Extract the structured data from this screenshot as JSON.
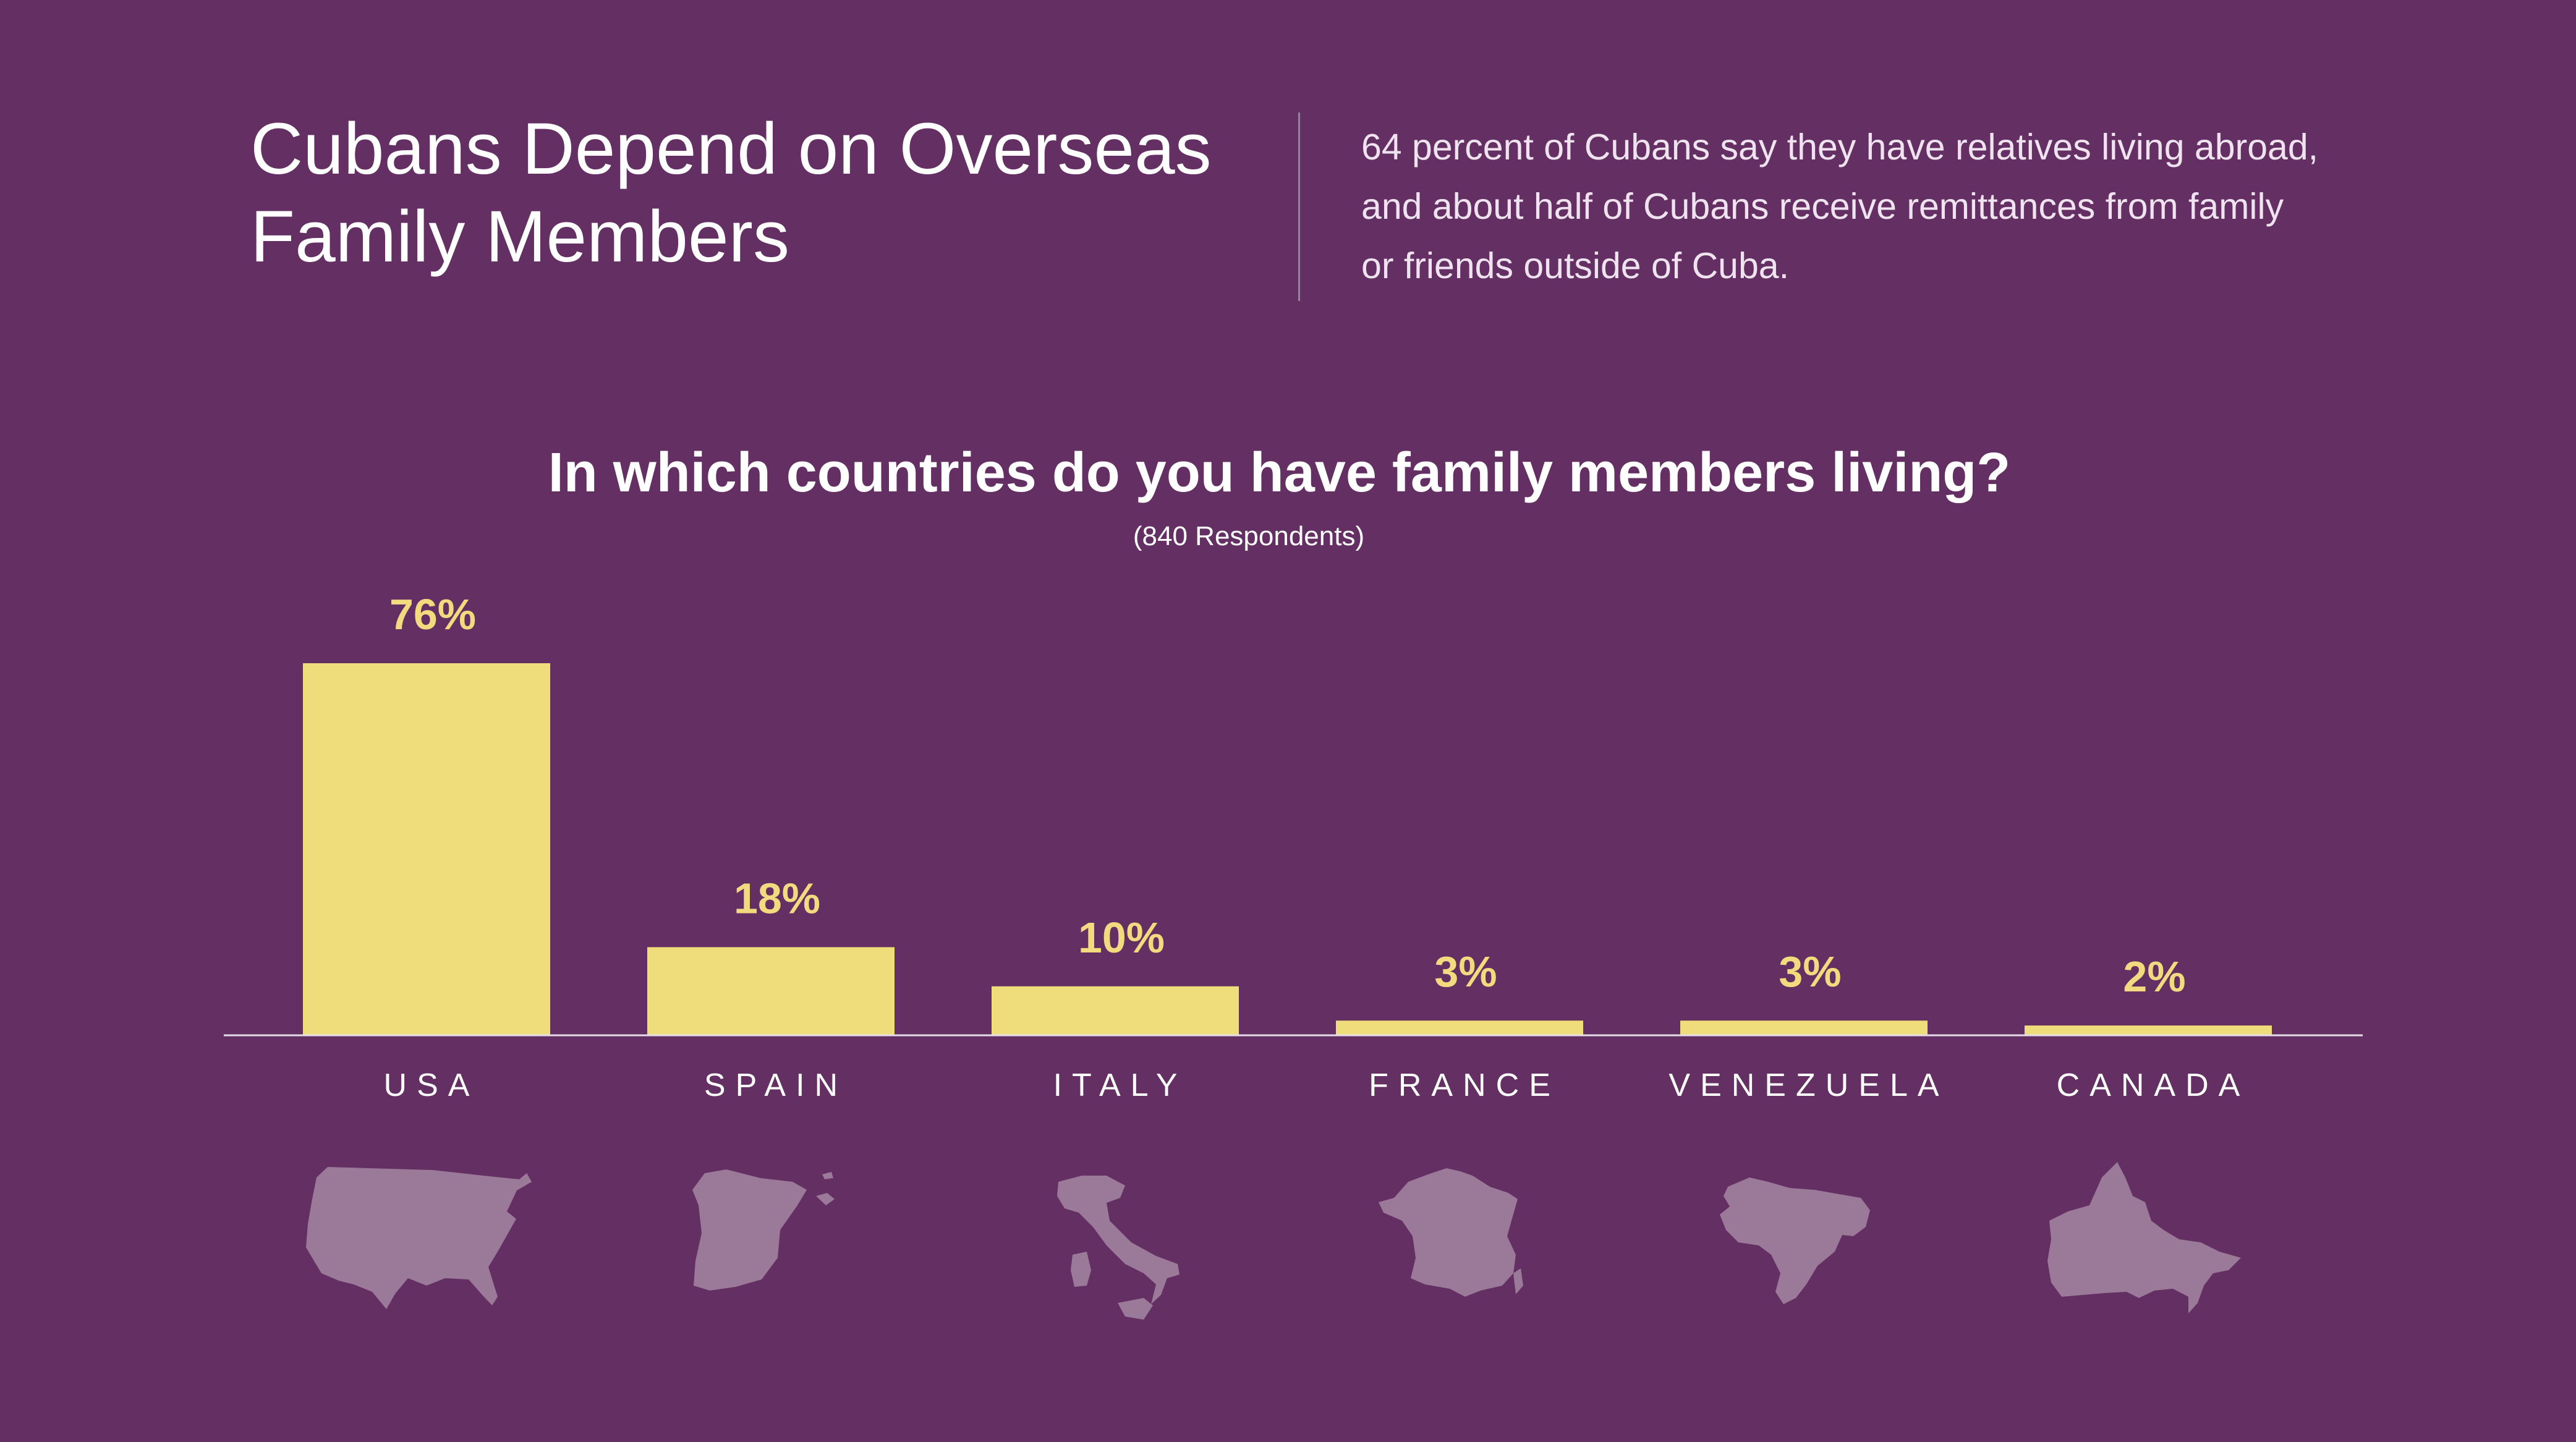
{
  "header": {
    "title_lines": [
      "Cubans Depend on Overseas",
      "Family Members"
    ],
    "description_lines": [
      "64 percent of Cubans say they have relatives living abroad,",
      "and about half of Cubans receive remittances from family",
      "or friends outside of Cuba."
    ]
  },
  "colors": {
    "background": "#642f63",
    "bar": "#efdc7a",
    "value_label": "#f2da7e",
    "category_label": "#ffffff",
    "baseline": "#e7dde8",
    "map": "#9b7998"
  },
  "chart_data": {
    "type": "bar",
    "title": "In which countries do you have family members living?",
    "subtitle": "(840 Respondents)",
    "categories": [
      "USA",
      "SPAIN",
      "ITALY",
      "FRANCE",
      "VENEZUELA",
      "CANADA"
    ],
    "values": [
      76,
      18,
      10,
      3,
      3,
      2
    ],
    "value_labels": [
      "76%",
      "18%",
      "10%",
      "3%",
      "3%",
      "2%"
    ],
    "ylim": [
      0,
      76
    ],
    "grid": false,
    "legend": "none",
    "category_icons": [
      "usa-map-icon",
      "spain-map-icon",
      "italy-map-icon",
      "france-map-icon",
      "venezuela-map-icon",
      "canada-map-icon"
    ]
  }
}
